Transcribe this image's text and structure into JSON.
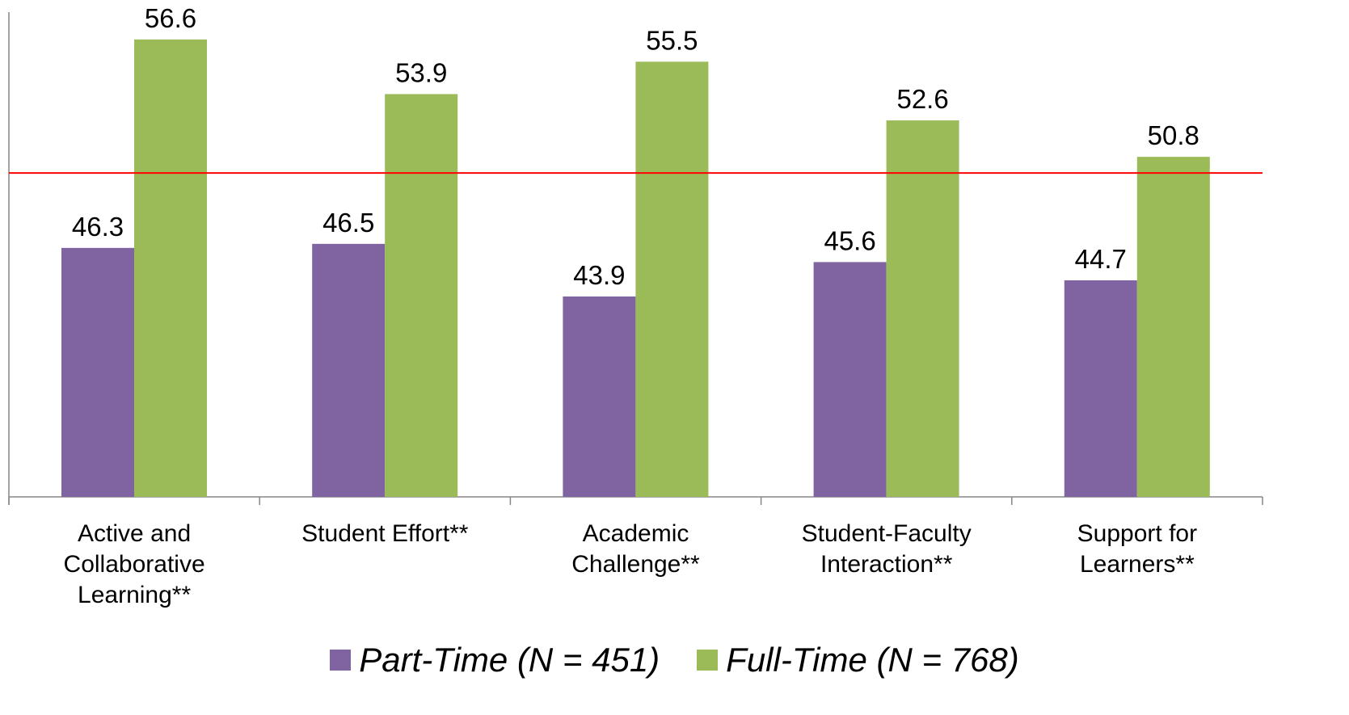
{
  "chart_data": {
    "type": "bar",
    "categories": [
      "Active and Collaborative Learning**",
      "Student Effort**",
      "Academic Challenge**",
      "Student-Faculty Interaction**",
      "Support for Learners**"
    ],
    "category_lines": [
      [
        "Active and",
        "Collaborative",
        "Learning**"
      ],
      [
        "Student Effort**"
      ],
      [
        "Academic",
        "Challenge**"
      ],
      [
        "Student-Faculty",
        "Interaction**"
      ],
      [
        "Support for",
        "Learners**"
      ]
    ],
    "series": [
      {
        "name": "Part-Time (N = 451)",
        "color": "#8064a2",
        "values": [
          46.3,
          46.5,
          43.9,
          45.6,
          44.7
        ],
        "labels": [
          "46.3",
          "46.5",
          "43.9",
          "45.6",
          "44.7"
        ]
      },
      {
        "name": "Full-Time (N = 768)",
        "color": "#9bbb59",
        "values": [
          56.6,
          53.9,
          55.5,
          52.6,
          50.8
        ],
        "labels": [
          "56.6",
          "53.9",
          "55.5",
          "52.6",
          "50.8"
        ]
      }
    ],
    "reference_line": {
      "value": 50,
      "color": "#ff0000"
    },
    "ylim": [
      34.0,
      57.95
    ],
    "title": "",
    "xlabel": "",
    "ylabel": "",
    "grid": false,
    "legend_position": "bottom"
  }
}
